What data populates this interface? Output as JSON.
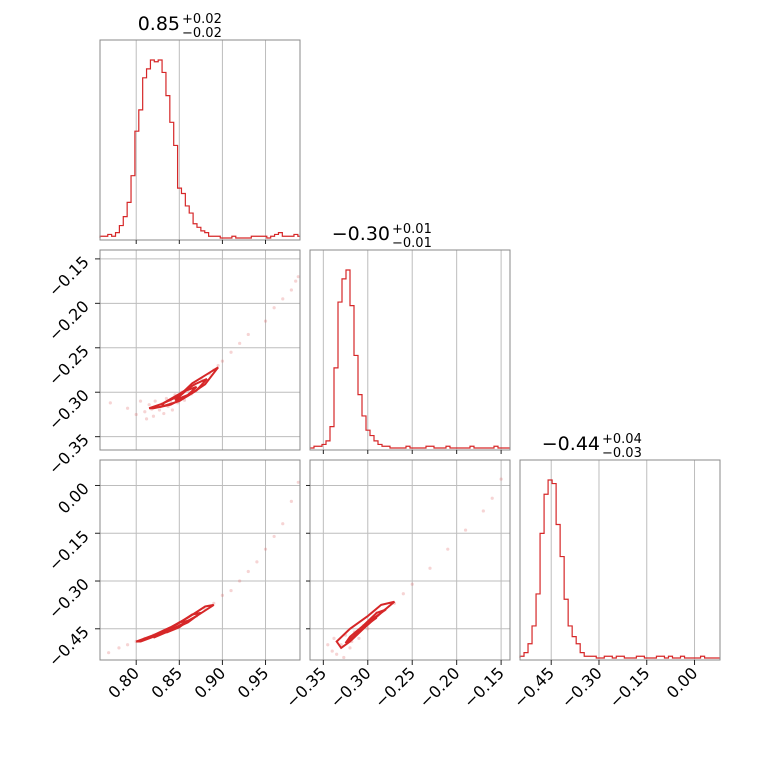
{
  "chart_data": {
    "type": "corner",
    "parameters": [
      "p0",
      "p1",
      "p2"
    ],
    "color": "#d62728",
    "grid": true,
    "titles": [
      {
        "value": "0.85",
        "plus": "+0.02",
        "minus": "−0.02"
      },
      {
        "value": "−0.30",
        "plus": "+0.01",
        "minus": "−0.01"
      },
      {
        "value": "−0.44",
        "plus": "+0.04",
        "minus": "−0.03"
      }
    ],
    "ranges": {
      "p0": [
        0.758,
        0.99
      ],
      "p1": [
        -0.365,
        -0.14
      ],
      "p2": [
        -0.548,
        0.08
      ]
    },
    "ticks": {
      "p0": {
        "values": [
          0.8,
          0.85,
          0.9,
          0.95
        ],
        "labels": [
          "0.80",
          "0.85",
          "0.90",
          "0.95"
        ]
      },
      "p1": {
        "values": [
          -0.35,
          -0.3,
          -0.25,
          -0.2,
          -0.15
        ],
        "labels": [
          "−0.35",
          "−0.30",
          "−0.25",
          "−0.20",
          "−0.15"
        ]
      },
      "p2": {
        "values": [
          -0.45,
          -0.3,
          -0.15,
          0.0
        ],
        "labels": [
          "−0.45",
          "−0.30",
          "−0.15",
          "0.00"
        ]
      }
    },
    "histograms": [
      {
        "param": "p0",
        "bin_edges": [
          0.758,
          0.7625,
          0.767,
          0.7715,
          0.776,
          0.7805,
          0.785,
          0.7895,
          0.794,
          0.7985,
          0.803,
          0.8075,
          0.812,
          0.8165,
          0.821,
          0.8255,
          0.83,
          0.8345,
          0.839,
          0.8435,
          0.848,
          0.8525,
          0.857,
          0.8615,
          0.866,
          0.8705,
          0.875,
          0.8795,
          0.884,
          0.8885,
          0.893,
          0.8975,
          0.902,
          0.9065,
          0.911,
          0.9155,
          0.92,
          0.9245,
          0.929,
          0.9335,
          0.938,
          0.9425,
          0.947,
          0.9515,
          0.956,
          0.9605,
          0.965,
          0.9695,
          0.974,
          0.9785,
          0.983,
          0.9875,
          0.99
        ],
        "counts": [
          1,
          1,
          2,
          1,
          3,
          7,
          12,
          20,
          35,
          60,
          72,
          90,
          95,
          100,
          99,
          100,
          93,
          80,
          65,
          52,
          28,
          25,
          18,
          14,
          8,
          6,
          4,
          3,
          1,
          1,
          1,
          0,
          0,
          0,
          1,
          0,
          0,
          0,
          0,
          1,
          1,
          1,
          1,
          0,
          1,
          2,
          3,
          1,
          1,
          1,
          2,
          1
        ]
      },
      {
        "param": "p1",
        "bin_edges": [
          -0.365,
          -0.3605,
          -0.356,
          -0.3515,
          -0.347,
          -0.3425,
          -0.338,
          -0.3335,
          -0.329,
          -0.3245,
          -0.32,
          -0.3155,
          -0.311,
          -0.3065,
          -0.302,
          -0.2975,
          -0.293,
          -0.2885,
          -0.284,
          -0.2795,
          -0.275,
          -0.2705,
          -0.266,
          -0.2615,
          -0.257,
          -0.2525,
          -0.248,
          -0.2435,
          -0.239,
          -0.2345,
          -0.23,
          -0.2255,
          -0.221,
          -0.2165,
          -0.212,
          -0.2075,
          -0.203,
          -0.1985,
          -0.194,
          -0.1895,
          -0.185,
          -0.1805,
          -0.176,
          -0.1715,
          -0.167,
          -0.1625,
          -0.158,
          -0.1535,
          -0.149,
          -0.1445,
          -0.14
        ],
        "counts": [
          0,
          1,
          1,
          2,
          4,
          12,
          45,
          82,
          95,
          100,
          80,
          52,
          30,
          18,
          10,
          7,
          4,
          2,
          1,
          1,
          0,
          0,
          0,
          0,
          1,
          0,
          0,
          0,
          0,
          1,
          1,
          0,
          0,
          0,
          1,
          0,
          0,
          0,
          0,
          0,
          1,
          0,
          0,
          0,
          0,
          0,
          1,
          0,
          0,
          0
        ]
      },
      {
        "param": "p2",
        "bin_edges": [
          -0.548,
          -0.5354,
          -0.5228,
          -0.5102,
          -0.4976,
          -0.485,
          -0.4724,
          -0.4598,
          -0.4472,
          -0.4346,
          -0.422,
          -0.4094,
          -0.3968,
          -0.3842,
          -0.3716,
          -0.359,
          -0.3464,
          -0.3338,
          -0.3212,
          -0.3086,
          -0.296,
          -0.2834,
          -0.2708,
          -0.2582,
          -0.2456,
          -0.233,
          -0.2204,
          -0.2078,
          -0.1952,
          -0.1826,
          -0.17,
          -0.1574,
          -0.1448,
          -0.1322,
          -0.1196,
          -0.107,
          -0.0944,
          -0.0818,
          -0.0692,
          -0.0566,
          -0.044,
          -0.0314,
          -0.0188,
          -0.0062,
          0.0064,
          0.019,
          0.0316,
          0.0442,
          0.0568,
          0.0694,
          0.08
        ],
        "counts": [
          1,
          3,
          8,
          18,
          36,
          70,
          92,
          100,
          98,
          75,
          57,
          33,
          18,
          12,
          8,
          3,
          1,
          1,
          1,
          0,
          0,
          1,
          1,
          0,
          1,
          1,
          0,
          0,
          0,
          1,
          1,
          0,
          0,
          0,
          1,
          1,
          0,
          1,
          0,
          0,
          1,
          0,
          0,
          0,
          0,
          1,
          0,
          0,
          0,
          0
        ]
      }
    ],
    "pair_panels": [
      {
        "x": "p0",
        "y": "p1",
        "contours": [
          [
            [
              0.82,
              -0.318
            ],
            [
              0.84,
              -0.314
            ],
            [
              0.86,
              -0.304
            ],
            [
              0.88,
              -0.291
            ],
            [
              0.895,
              -0.272
            ],
            [
              0.885,
              -0.278
            ],
            [
              0.865,
              -0.29
            ],
            [
              0.85,
              -0.304
            ],
            [
              0.83,
              -0.313
            ],
            [
              0.815,
              -0.318
            ],
            [
              0.82,
              -0.318
            ]
          ],
          [
            [
              0.83,
              -0.316
            ],
            [
              0.85,
              -0.31
            ],
            [
              0.87,
              -0.298
            ],
            [
              0.882,
              -0.285
            ],
            [
              0.868,
              -0.291
            ],
            [
              0.85,
              -0.302
            ],
            [
              0.832,
              -0.312
            ],
            [
              0.83,
              -0.316
            ]
          ],
          [
            [
              0.845,
              -0.309
            ],
            [
              0.86,
              -0.303
            ],
            [
              0.87,
              -0.294
            ],
            [
              0.858,
              -0.298
            ],
            [
              0.845,
              -0.309
            ]
          ]
        ],
        "points": [
          [
            0.77,
            -0.312
          ],
          [
            0.79,
            -0.318
          ],
          [
            0.8,
            -0.325
          ],
          [
            0.805,
            -0.31
          ],
          [
            0.81,
            -0.322
          ],
          [
            0.812,
            -0.33
          ],
          [
            0.815,
            -0.314
          ],
          [
            0.818,
            -0.319
          ],
          [
            0.82,
            -0.327
          ],
          [
            0.822,
            -0.31
          ],
          [
            0.825,
            -0.316
          ],
          [
            0.827,
            -0.32
          ],
          [
            0.83,
            -0.313
          ],
          [
            0.832,
            -0.324
          ],
          [
            0.835,
            -0.307
          ],
          [
            0.837,
            -0.316
          ],
          [
            0.84,
            -0.31
          ],
          [
            0.842,
            -0.32
          ],
          [
            0.845,
            -0.303
          ],
          [
            0.848,
            -0.312
          ],
          [
            0.85,
            -0.306
          ],
          [
            0.853,
            -0.3
          ],
          [
            0.856,
            -0.309
          ],
          [
            0.86,
            -0.298
          ],
          [
            0.864,
            -0.302
          ],
          [
            0.868,
            -0.292
          ],
          [
            0.872,
            -0.296
          ],
          [
            0.876,
            -0.286
          ],
          [
            0.88,
            -0.289
          ],
          [
            0.885,
            -0.279
          ],
          [
            0.89,
            -0.275
          ],
          [
            0.895,
            -0.27
          ],
          [
            0.9,
            -0.265
          ],
          [
            0.91,
            -0.255
          ],
          [
            0.92,
            -0.245
          ],
          [
            0.93,
            -0.235
          ],
          [
            0.95,
            -0.22
          ],
          [
            0.96,
            -0.205
          ],
          [
            0.97,
            -0.195
          ],
          [
            0.98,
            -0.185
          ],
          [
            0.985,
            -0.175
          ],
          [
            0.988,
            -0.17
          ]
        ]
      },
      {
        "x": "p0",
        "y": "p2",
        "contours": [
          [
            [
              0.805,
              -0.49
            ],
            [
              0.83,
              -0.465
            ],
            [
              0.85,
              -0.44
            ],
            [
              0.87,
              -0.41
            ],
            [
              0.89,
              -0.375
            ],
            [
              0.88,
              -0.38
            ],
            [
              0.86,
              -0.415
            ],
            [
              0.84,
              -0.445
            ],
            [
              0.82,
              -0.47
            ],
            [
              0.8,
              -0.49
            ],
            [
              0.805,
              -0.49
            ]
          ],
          [
            [
              0.82,
              -0.478
            ],
            [
              0.84,
              -0.455
            ],
            [
              0.86,
              -0.43
            ],
            [
              0.875,
              -0.4
            ],
            [
              0.865,
              -0.405
            ],
            [
              0.848,
              -0.435
            ],
            [
              0.83,
              -0.462
            ],
            [
              0.82,
              -0.478
            ]
          ],
          [
            [
              0.835,
              -0.462
            ],
            [
              0.85,
              -0.445
            ],
            [
              0.86,
              -0.425
            ],
            [
              0.85,
              -0.43
            ],
            [
              0.838,
              -0.452
            ],
            [
              0.835,
              -0.462
            ]
          ]
        ],
        "points": [
          [
            0.768,
            -0.525
          ],
          [
            0.78,
            -0.51
          ],
          [
            0.79,
            -0.5
          ],
          [
            0.8,
            -0.49
          ],
          [
            0.81,
            -0.48
          ],
          [
            0.82,
            -0.47
          ],
          [
            0.83,
            -0.46
          ],
          [
            0.84,
            -0.45
          ],
          [
            0.85,
            -0.44
          ],
          [
            0.86,
            -0.425
          ],
          [
            0.87,
            -0.41
          ],
          [
            0.88,
            -0.39
          ],
          [
            0.89,
            -0.37
          ],
          [
            0.9,
            -0.345
          ],
          [
            0.91,
            -0.33
          ],
          [
            0.92,
            -0.3
          ],
          [
            0.93,
            -0.27
          ],
          [
            0.94,
            -0.24
          ],
          [
            0.95,
            -0.2
          ],
          [
            0.96,
            -0.16
          ],
          [
            0.97,
            -0.12
          ],
          [
            0.98,
            -0.05
          ],
          [
            0.988,
            0.01
          ]
        ]
      },
      {
        "x": "p1",
        "y": "p2",
        "contours": [
          [
            [
              -0.33,
              -0.51
            ],
            [
              -0.32,
              -0.49
            ],
            [
              -0.305,
              -0.45
            ],
            [
              -0.285,
              -0.4
            ],
            [
              -0.27,
              -0.365
            ],
            [
              -0.285,
              -0.375
            ],
            [
              -0.3,
              -0.41
            ],
            [
              -0.32,
              -0.45
            ],
            [
              -0.335,
              -0.49
            ],
            [
              -0.33,
              -0.51
            ]
          ],
          [
            [
              -0.325,
              -0.495
            ],
            [
              -0.31,
              -0.46
            ],
            [
              -0.295,
              -0.42
            ],
            [
              -0.28,
              -0.39
            ],
            [
              -0.29,
              -0.4
            ],
            [
              -0.305,
              -0.44
            ],
            [
              -0.32,
              -0.475
            ],
            [
              -0.325,
              -0.495
            ]
          ],
          [
            [
              -0.315,
              -0.47
            ],
            [
              -0.305,
              -0.445
            ],
            [
              -0.29,
              -0.415
            ],
            [
              -0.3,
              -0.43
            ],
            [
              -0.31,
              -0.455
            ],
            [
              -0.315,
              -0.47
            ]
          ]
        ],
        "points": [
          [
            -0.345,
            -0.5
          ],
          [
            -0.34,
            -0.52
          ],
          [
            -0.338,
            -0.48
          ],
          [
            -0.335,
            -0.53
          ],
          [
            -0.33,
            -0.5
          ],
          [
            -0.327,
            -0.54
          ],
          [
            -0.325,
            -0.47
          ],
          [
            -0.32,
            -0.51
          ],
          [
            -0.318,
            -0.49
          ],
          [
            -0.315,
            -0.46
          ],
          [
            -0.31,
            -0.48
          ],
          [
            -0.305,
            -0.44
          ],
          [
            -0.3,
            -0.45
          ],
          [
            -0.295,
            -0.42
          ],
          [
            -0.29,
            -0.4
          ],
          [
            -0.28,
            -0.39
          ],
          [
            -0.27,
            -0.37
          ],
          [
            -0.26,
            -0.34
          ],
          [
            -0.25,
            -0.31
          ],
          [
            -0.23,
            -0.26
          ],
          [
            -0.21,
            -0.2
          ],
          [
            -0.19,
            -0.14
          ],
          [
            -0.17,
            -0.08
          ],
          [
            -0.16,
            -0.04
          ],
          [
            -0.15,
            0.02
          ]
        ]
      }
    ]
  }
}
